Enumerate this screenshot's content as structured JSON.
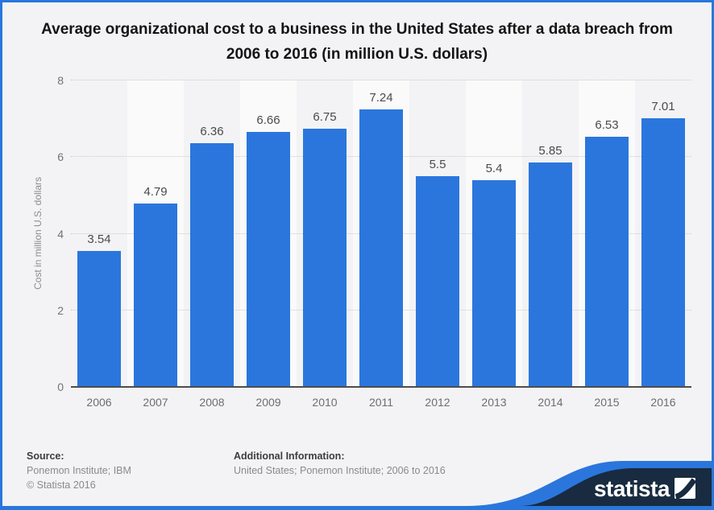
{
  "chart_data": {
    "type": "bar",
    "title": "Average organizational cost to a business in the United States after a data breach from 2006 to 2016 (in million U.S. dollars)",
    "categories": [
      "2006",
      "2007",
      "2008",
      "2009",
      "2010",
      "2011",
      "2012",
      "2013",
      "2014",
      "2015",
      "2016"
    ],
    "values": [
      3.54,
      4.79,
      6.36,
      6.66,
      6.75,
      7.24,
      5.5,
      5.4,
      5.85,
      6.53,
      7.01
    ],
    "xlabel": "",
    "ylabel": "Cost in million U.S. dollars",
    "ylim": [
      0,
      8
    ],
    "yticks": [
      0,
      2,
      4,
      6,
      8
    ],
    "grid": "horizontal-dotted",
    "legend": "none",
    "bar_color": "#2b76dd"
  },
  "footer": {
    "source_label": "Source:",
    "source_line1": "Ponemon Institute; IBM",
    "source_line2": "© Statista 2016",
    "additional_label": "Additional Information:",
    "additional_text": "United States; Ponemon Institute; 2006 to 2016"
  },
  "branding": {
    "wordmark": "statista"
  },
  "colors": {
    "frame_border": "#2777dc",
    "background": "#f3f3f5",
    "alt_band": "#fafafa",
    "bar": "#2b76dd",
    "navy": "#182b40",
    "curve_blue": "#2b76dd"
  }
}
